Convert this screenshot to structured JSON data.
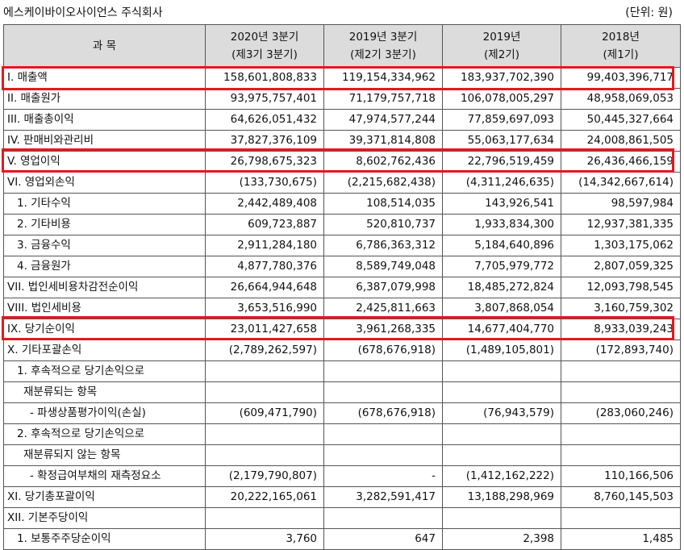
{
  "caption": {
    "company": "에스케이바이오사이언스 주식회사",
    "unit": "(단위: 원)"
  },
  "header": {
    "item": "과     목",
    "cols": [
      {
        "line1": "2020년 3분기",
        "line2": "(제3기 3분기)"
      },
      {
        "line1": "2019년 3분기",
        "line2": "(제2기 3분기)"
      },
      {
        "line1": "2019년",
        "line2": "(제2기)"
      },
      {
        "line1": "2018년",
        "line2": "(제1기)"
      }
    ]
  },
  "rows": [
    {
      "label": "I. 매출액",
      "v": [
        "158,601,808,833",
        "119,154,334,962",
        "183,937,702,390",
        "99,403,396,717"
      ]
    },
    {
      "label": "II. 매출원가",
      "v": [
        "93,975,757,401",
        "71,179,757,718",
        "106,078,005,297",
        "48,958,069,053"
      ]
    },
    {
      "label": "III. 매출총이익",
      "v": [
        "64,626,051,432",
        "47,974,577,244",
        "77,859,697,093",
        "50,445,327,664"
      ]
    },
    {
      "label": "IV. 판매비와관리비",
      "v": [
        "37,827,376,109",
        "39,371,814,808",
        "55,063,177,634",
        "24,008,861,505"
      ]
    },
    {
      "label": "V. 영업이익",
      "v": [
        "26,798,675,323",
        "8,602,762,436",
        "22,796,519,459",
        "26,436,466,159"
      ]
    },
    {
      "label": "VI. 영업외손익",
      "v": [
        "(133,730,675)",
        "(2,215,682,438)",
        "(4,311,246,635)",
        "(14,342,667,614)"
      ]
    },
    {
      "label": "1. 기타수익",
      "v": [
        "2,442,489,408",
        "108,514,035",
        "143,926,541",
        "98,597,984"
      ]
    },
    {
      "label": "2. 기타비용",
      "v": [
        "609,723,887",
        "520,810,737",
        "1,933,834,300",
        "12,937,381,335"
      ]
    },
    {
      "label": "3. 금융수익",
      "v": [
        "2,911,284,180",
        "6,786,363,312",
        "5,184,640,896",
        "1,303,175,062"
      ]
    },
    {
      "label": "4. 금융원가",
      "v": [
        "4,877,780,376",
        "8,589,749,048",
        "7,705,979,772",
        "2,807,059,325"
      ]
    },
    {
      "label": "VII. 법인세비용차감전순이익",
      "v": [
        "26,664,944,648",
        "6,387,079,998",
        "18,485,272,824",
        "12,093,798,545"
      ]
    },
    {
      "label": "VIII. 법인세비용",
      "v": [
        "3,653,516,990",
        "2,425,811,663",
        "3,807,868,054",
        "3,160,759,302"
      ]
    },
    {
      "label": "IX. 당기순이익",
      "v": [
        "23,011,427,658",
        "3,961,268,335",
        "14,677,404,770",
        "8,933,039,243"
      ]
    },
    {
      "label": "X. 기타포괄손익",
      "v": [
        "(2,789,262,597)",
        "(678,676,918)",
        "(1,489,105,801)",
        "(172,893,740)"
      ]
    },
    {
      "label": "1. 후속적으로 당기손익으로",
      "v": [
        "",
        "",
        "",
        ""
      ]
    },
    {
      "label": "재분류되는 항목",
      "v": [
        "",
        "",
        "",
        ""
      ]
    },
    {
      "label": "- 파생상품평가이익(손실)",
      "v": [
        "(609,471,790)",
        "(678,676,918)",
        "(76,943,579)",
        "(283,060,246)"
      ]
    },
    {
      "label": "2. 후속적으로 당기손익으로",
      "v": [
        "",
        "",
        "",
        ""
      ]
    },
    {
      "label": "재분류되지 않는 항목",
      "v": [
        "",
        "",
        "",
        ""
      ]
    },
    {
      "label": "- 확정급여부채의 재측정요소",
      "v": [
        "(2,179,790,807)",
        "-",
        "(1,412,162,222)",
        "110,166,506"
      ]
    },
    {
      "label": "XI. 당기총포괄이익",
      "v": [
        "20,222,165,061",
        "3,282,591,417",
        "13,188,298,969",
        "8,760,145,503"
      ]
    },
    {
      "label": "XII. 기본주당이익",
      "v": [
        "",
        "",
        "",
        ""
      ]
    },
    {
      "label": "1. 보통주주당순이익",
      "v": [
        "3,760",
        "647",
        "2,398",
        "1,485"
      ]
    }
  ],
  "highlight_color": "#e3191f"
}
